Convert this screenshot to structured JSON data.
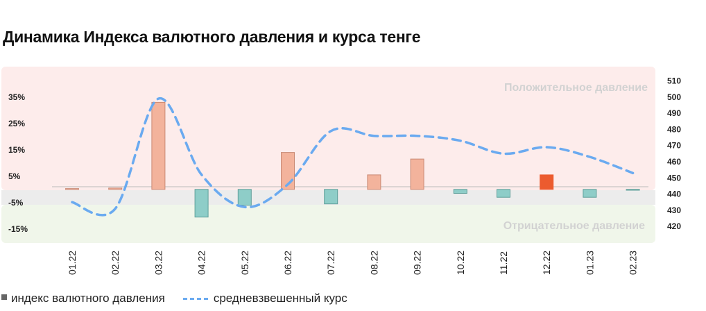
{
  "chart_data": {
    "type": "bar+line",
    "title": "Динамика Индекса валютного давления и курса тенге",
    "categories": [
      "01.22",
      "02.22",
      "03.22",
      "04.22",
      "05.22",
      "06.22",
      "07.22",
      "08.22",
      "09.22",
      "10.22",
      "11.22",
      "12.22",
      "01.23",
      "02.23"
    ],
    "series": [
      {
        "name": "индекс валютного давления",
        "kind": "bar",
        "axis": "left",
        "values": [
          0.3,
          0.5,
          33,
          -10.5,
          -6,
          14,
          -5.5,
          5.5,
          11.5,
          -1.5,
          -3,
          5.5,
          -3,
          -0.3
        ],
        "colors": {
          "positive": "#f3b39c",
          "negative": "#8ecdc8",
          "highlight": "#ec5b2e"
        },
        "highlight_index": 11
      },
      {
        "name": "средневзвешенный курс",
        "kind": "line",
        "axis": "right",
        "style": "dashed",
        "color": "#6aaaf0",
        "values": [
          435,
          431,
          499,
          452,
          432,
          446,
          479,
          476,
          476,
          473,
          465,
          469,
          463,
          453
        ]
      }
    ],
    "y_left": {
      "ticks": [
        "35%",
        "25%",
        "15%",
        "5%",
        "-5%",
        "-15%"
      ],
      "tick_values": [
        35,
        25,
        15,
        5,
        -5,
        -15
      ],
      "range": [
        -15,
        35
      ]
    },
    "y_right": {
      "ticks": [
        "510",
        "500",
        "490",
        "480",
        "470",
        "460",
        "450",
        "440",
        "430",
        "420"
      ],
      "tick_values": [
        510,
        500,
        490,
        480,
        470,
        460,
        450,
        440,
        430,
        420
      ],
      "range": [
        420,
        510
      ]
    },
    "zones": {
      "positive_label": "Положительное давление",
      "negative_label": "Отрицательное давление",
      "positive_color": "#fdeceb",
      "neutral_color": "#ececec",
      "negative_color": "#f0f6ea"
    },
    "legend": {
      "bar_label": "индекс валютного давления",
      "line_label": "средневзвешенный курс"
    }
  }
}
